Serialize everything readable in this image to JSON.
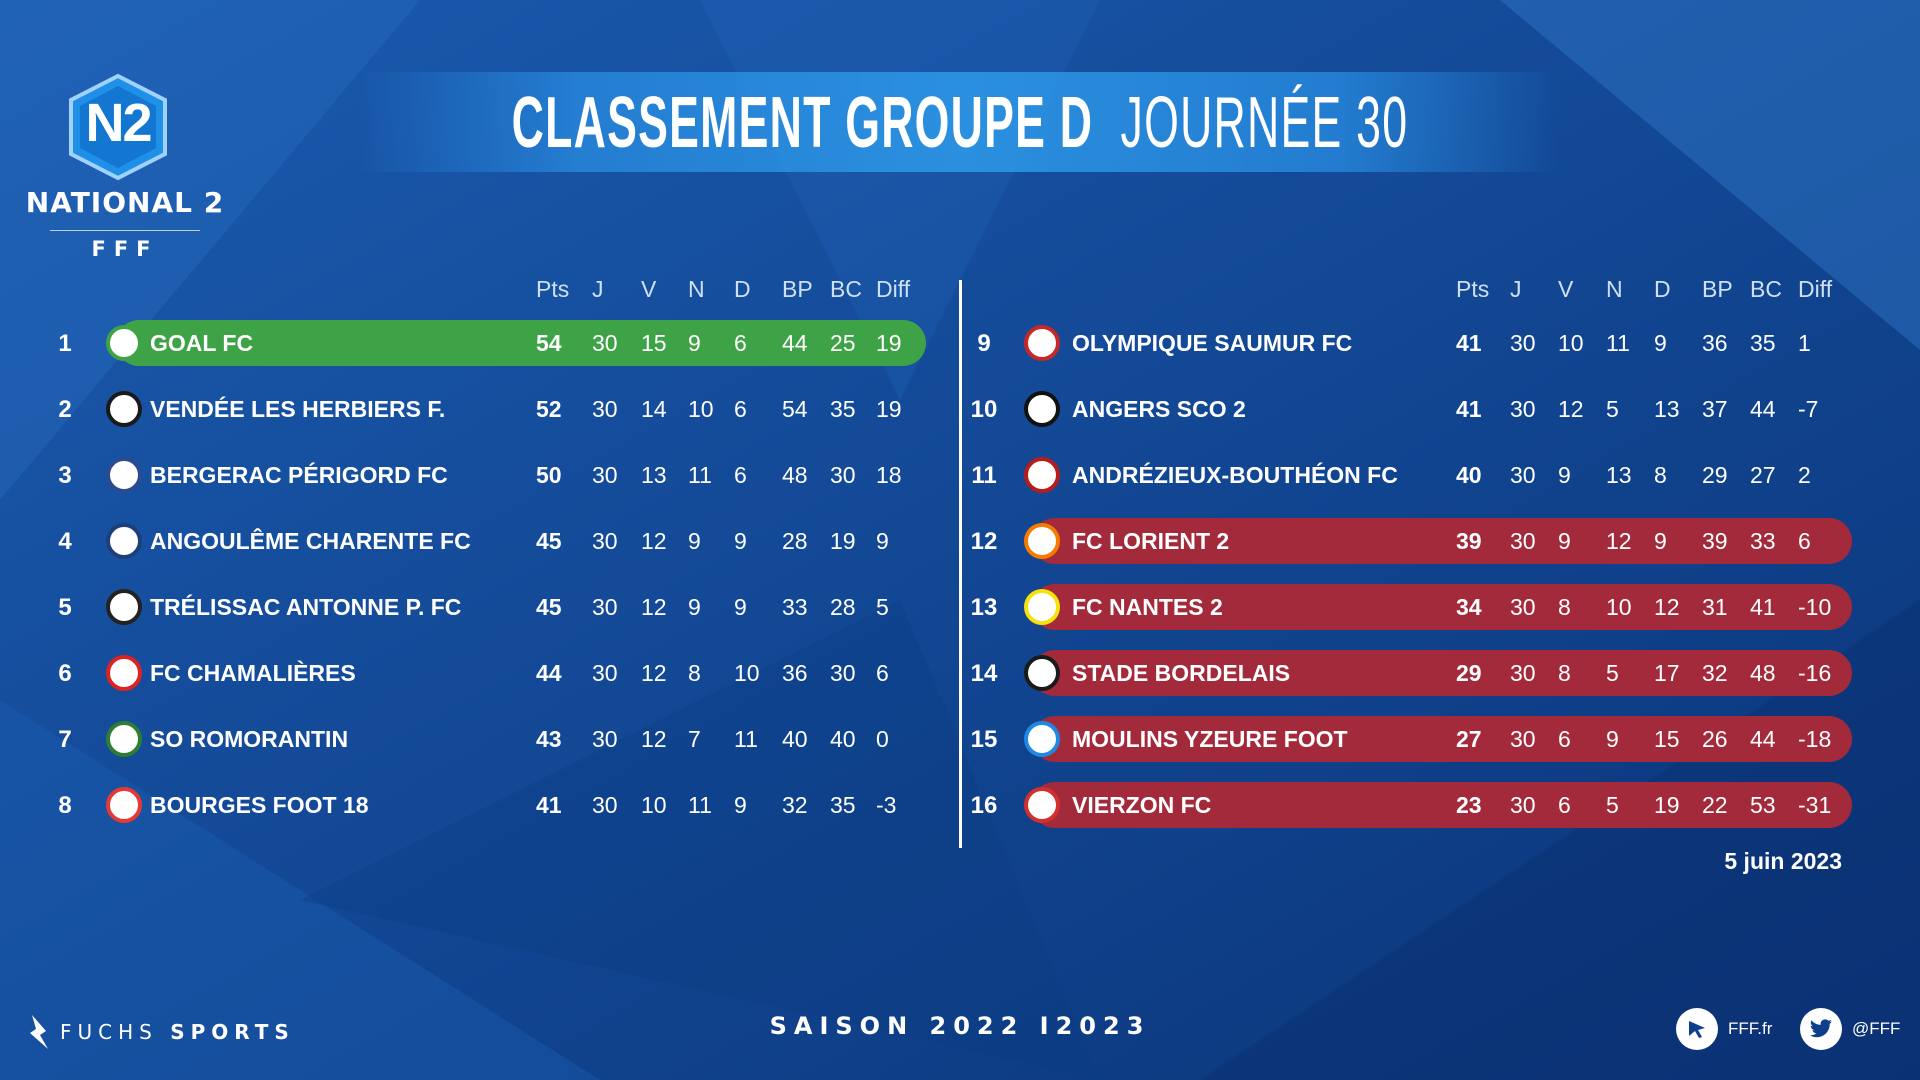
{
  "header": {
    "logo": {
      "badge": "N2",
      "name": "NATIONAL 2",
      "org": "FFF"
    },
    "title_bold": "CLASSEMENT GROUPE D",
    "title_light": "JOURNÉE 30"
  },
  "columns": [
    "Pts",
    "J",
    "V",
    "N",
    "D",
    "BP",
    "BC",
    "Diff"
  ],
  "left_table": [
    {
      "rank": "1",
      "team": "GOAL FC",
      "pts": "54",
      "j": "30",
      "v": "15",
      "n": "9",
      "d": "6",
      "bp": "44",
      "bc": "25",
      "diff": "19",
      "highlight": "green",
      "crest_color": "#3ea346"
    },
    {
      "rank": "2",
      "team": "VENDÉE LES HERBIERS F.",
      "pts": "52",
      "j": "30",
      "v": "14",
      "n": "10",
      "d": "6",
      "bp": "54",
      "bc": "35",
      "diff": "19",
      "highlight": "",
      "crest_color": "#1a1a1a"
    },
    {
      "rank": "3",
      "team": "BERGERAC PÉRIGORD FC",
      "pts": "50",
      "j": "30",
      "v": "13",
      "n": "11",
      "d": "6",
      "bp": "48",
      "bc": "30",
      "diff": "18",
      "highlight": "",
      "crest_color": "#2b4a8f"
    },
    {
      "rank": "4",
      "team": "ANGOULÊME CHARENTE FC",
      "pts": "45",
      "j": "30",
      "v": "12",
      "n": "9",
      "d": "9",
      "bp": "28",
      "bc": "19",
      "diff": "9",
      "highlight": "",
      "crest_color": "#1f3f7a"
    },
    {
      "rank": "5",
      "team": "TRÉLISSAC ANTONNE P. FC",
      "pts": "45",
      "j": "30",
      "v": "12",
      "n": "9",
      "d": "9",
      "bp": "33",
      "bc": "28",
      "diff": "5",
      "highlight": "",
      "crest_color": "#222"
    },
    {
      "rank": "6",
      "team": "FC CHAMALIÈRES",
      "pts": "44",
      "j": "30",
      "v": "12",
      "n": "8",
      "d": "10",
      "bp": "36",
      "bc": "30",
      "diff": "6",
      "highlight": "",
      "crest_color": "#d22"
    },
    {
      "rank": "7",
      "team": "SO ROMORANTIN",
      "pts": "43",
      "j": "30",
      "v": "12",
      "n": "7",
      "d": "11",
      "bp": "40",
      "bc": "40",
      "diff": "0",
      "highlight": "",
      "crest_color": "#2e7d32"
    },
    {
      "rank": "8",
      "team": "BOURGES FOOT 18",
      "pts": "41",
      "j": "30",
      "v": "10",
      "n": "11",
      "d": "9",
      "bp": "32",
      "bc": "35",
      "diff": "-3",
      "highlight": "",
      "crest_color": "#e53935"
    }
  ],
  "right_table": [
    {
      "rank": "9",
      "team": "OLYMPIQUE SAUMUR FC",
      "pts": "41",
      "j": "30",
      "v": "10",
      "n": "11",
      "d": "9",
      "bp": "36",
      "bc": "35",
      "diff": "1",
      "highlight": "",
      "crest_color": "#c62828"
    },
    {
      "rank": "10",
      "team": "ANGERS SCO 2",
      "pts": "41",
      "j": "30",
      "v": "12",
      "n": "5",
      "d": "13",
      "bp": "37",
      "bc": "44",
      "diff": "-7",
      "highlight": "",
      "crest_color": "#111"
    },
    {
      "rank": "11",
      "team": "ANDRÉZIEUX-BOUTHÉON FC",
      "pts": "40",
      "j": "30",
      "v": "9",
      "n": "13",
      "d": "8",
      "bp": "29",
      "bc": "27",
      "diff": "2",
      "highlight": "",
      "crest_color": "#b71c1c"
    },
    {
      "rank": "12",
      "team": "FC LORIENT 2",
      "pts": "39",
      "j": "30",
      "v": "9",
      "n": "12",
      "d": "9",
      "bp": "39",
      "bc": "33",
      "diff": "6",
      "highlight": "red",
      "crest_color": "#f57c00"
    },
    {
      "rank": "13",
      "team": "FC NANTES 2",
      "pts": "34",
      "j": "30",
      "v": "8",
      "n": "10",
      "d": "12",
      "bp": "31",
      "bc": "41",
      "diff": "-10",
      "highlight": "red",
      "crest_color": "#f5e10b"
    },
    {
      "rank": "14",
      "team": "STADE BORDELAIS",
      "pts": "29",
      "j": "30",
      "v": "8",
      "n": "5",
      "d": "17",
      "bp": "32",
      "bc": "48",
      "diff": "-16",
      "highlight": "red",
      "crest_color": "#1a1a1a"
    },
    {
      "rank": "15",
      "team": "MOULINS YZEURE FOOT",
      "pts": "27",
      "j": "30",
      "v": "6",
      "n": "9",
      "d": "15",
      "bp": "26",
      "bc": "44",
      "diff": "-18",
      "highlight": "red",
      "crest_color": "#1e88e5"
    },
    {
      "rank": "16",
      "team": "VIERZON FC",
      "pts": "23",
      "j": "30",
      "v": "6",
      "n": "5",
      "d": "19",
      "bp": "22",
      "bc": "53",
      "diff": "-31",
      "highlight": "red",
      "crest_color": "#d32f2f"
    }
  ],
  "date": "5 juin 2023",
  "footer": {
    "sponsor_light": "FUCHS",
    "sponsor_bold": "SPORTS",
    "season": "SAISON 2022 I2023",
    "website": "FFF.fr",
    "twitter": "@FFF"
  },
  "colors": {
    "background": "#0d3f8c",
    "promotion": "#3ea346",
    "relegation": "#a32a3b"
  }
}
